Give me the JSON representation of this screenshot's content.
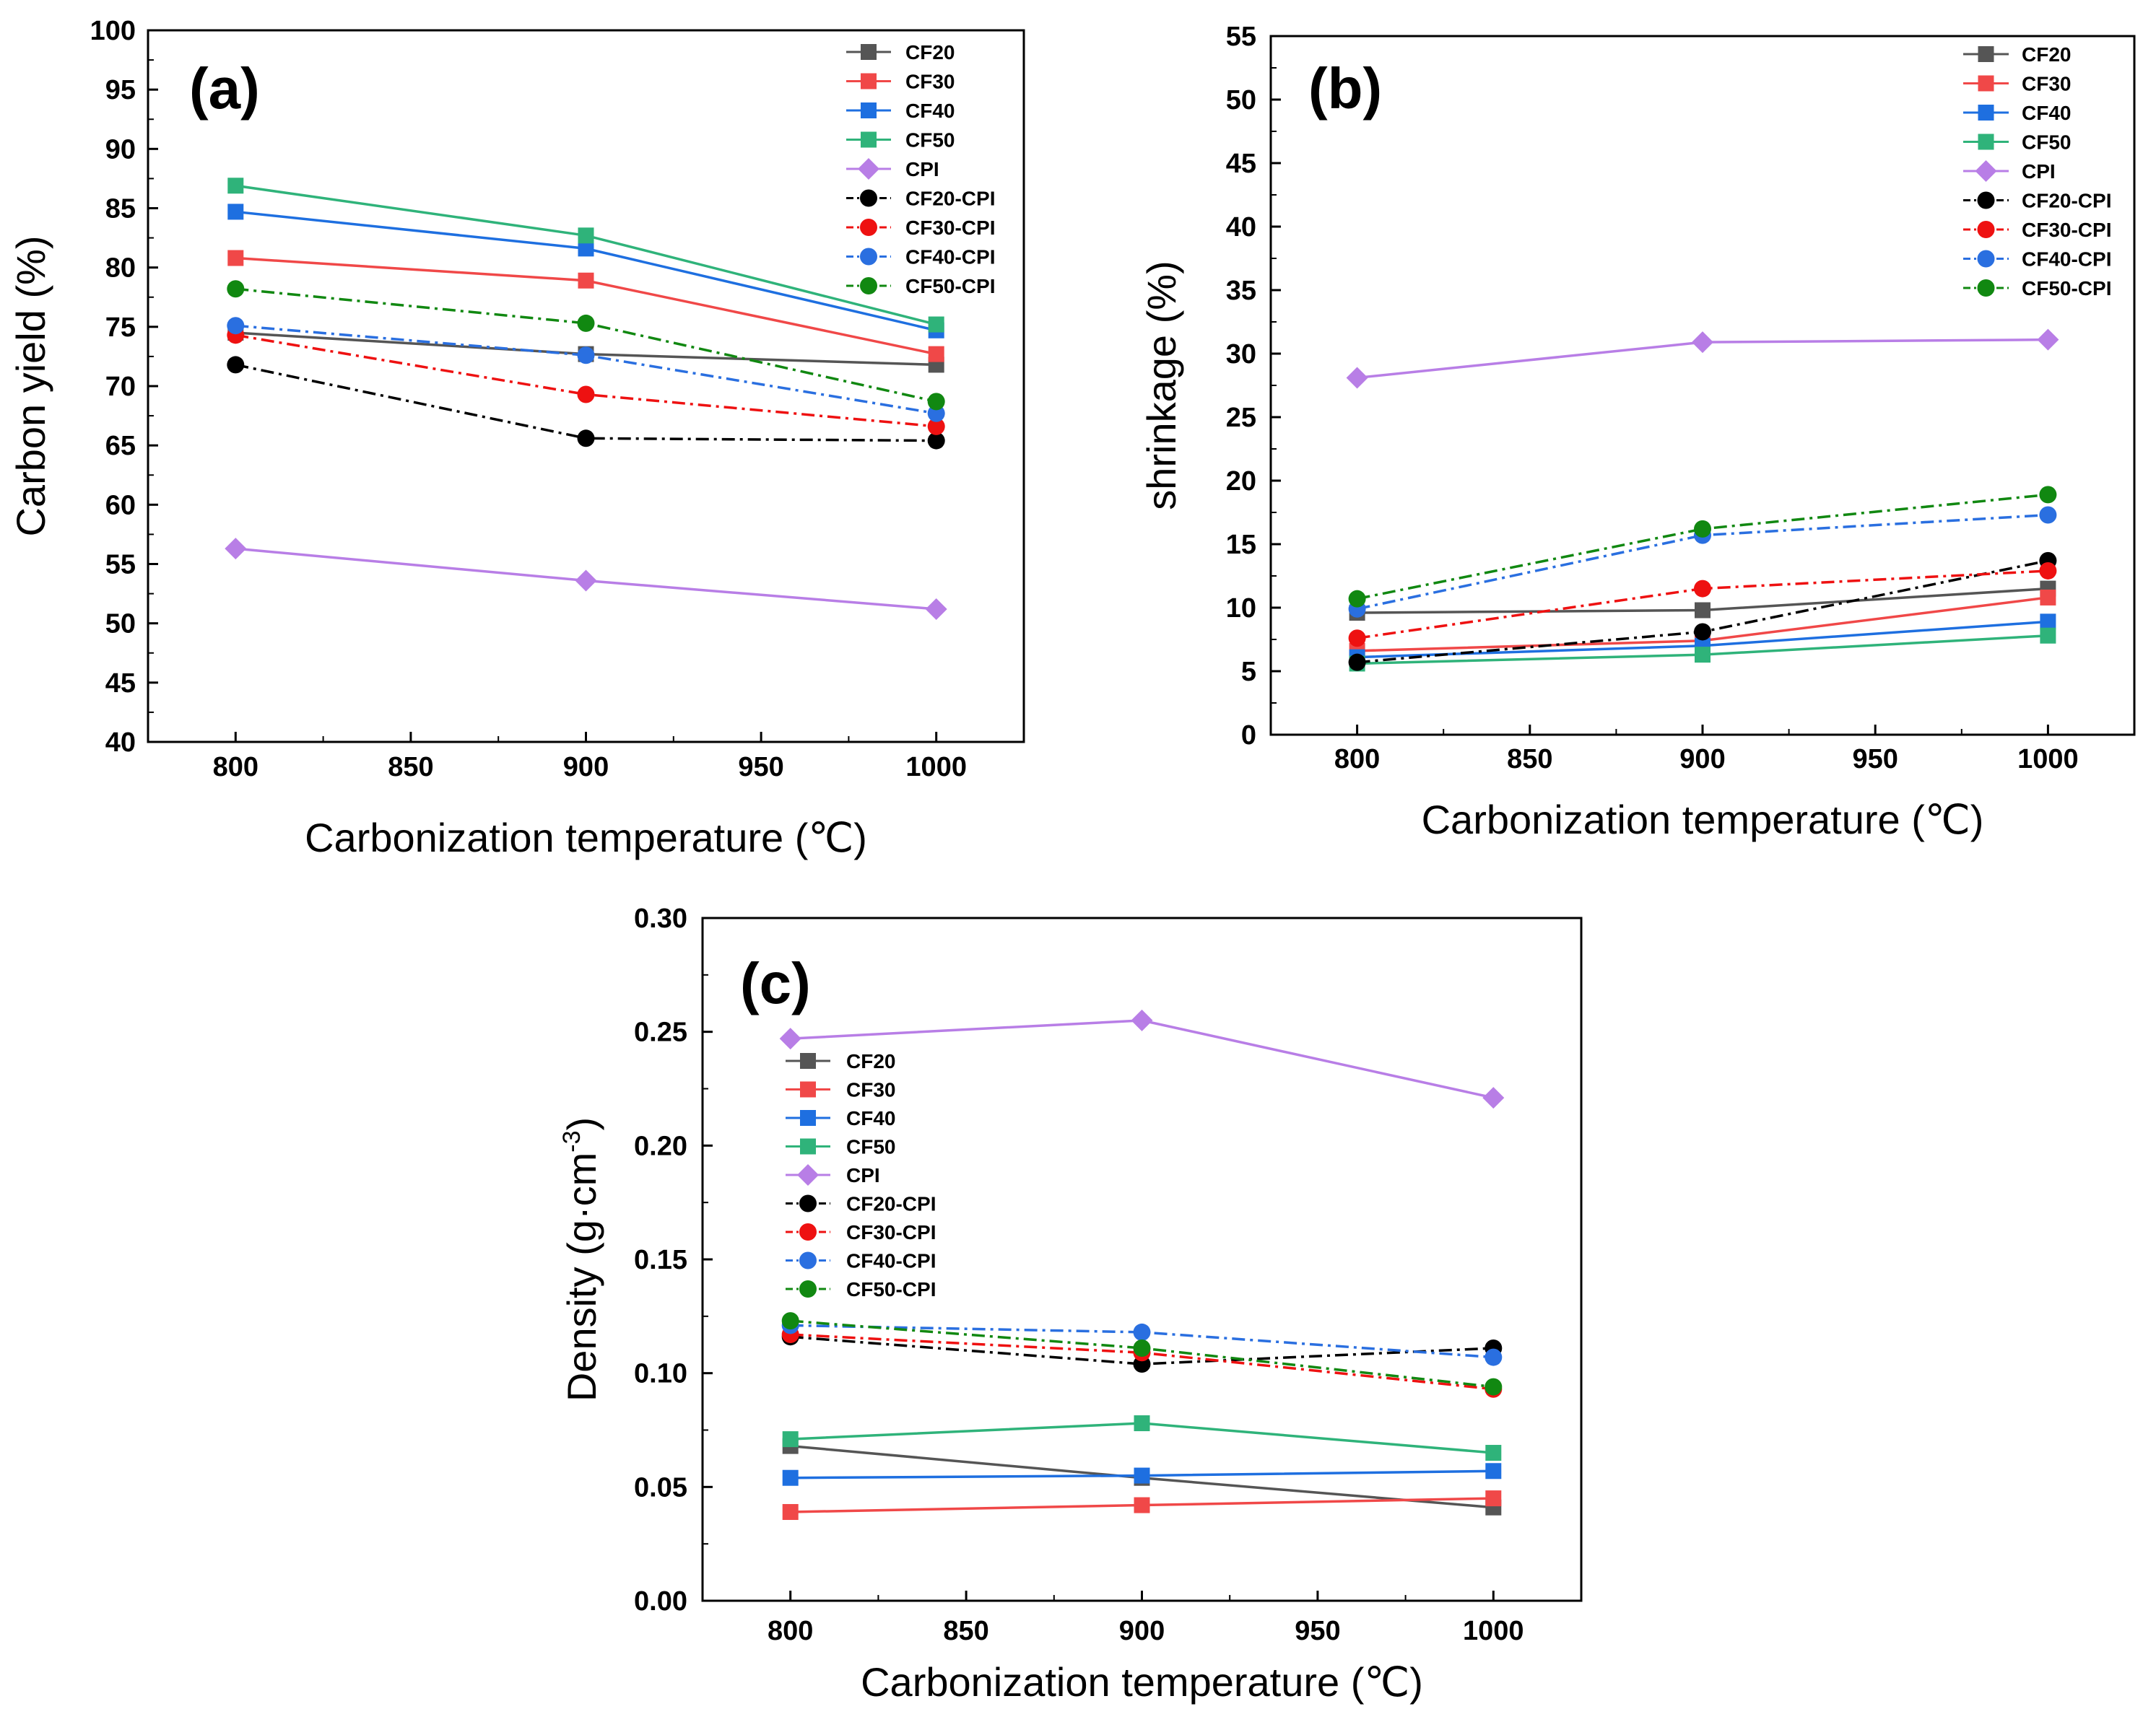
{
  "colors": {
    "CF20": "#555555",
    "CF30": "#f04848",
    "CF40": "#1e6fe0",
    "CF50": "#2fb37a",
    "CPI": "#b87ee6",
    "CF20-CPI": "#000000",
    "CF30-CPI": "#ee1111",
    "CF40-CPI": "#2a6fe0",
    "CF50-CPI": "#118811"
  },
  "chart_data": [
    {
      "id": "a",
      "type": "line",
      "panel_tag": "(a)",
      "xlabel": "Carbonization temperature (℃)",
      "ylabel": "Carbon yield (%)",
      "xlim": [
        775,
        1025
      ],
      "ylim": [
        40,
        100
      ],
      "xticks": [
        800,
        850,
        900,
        950,
        1000
      ],
      "yticks": [
        40,
        45,
        50,
        55,
        60,
        65,
        70,
        75,
        80,
        85,
        90,
        95,
        100
      ],
      "legend_position": "top-right",
      "x": [
        800,
        900,
        1000
      ],
      "series": [
        {
          "name": "CF20",
          "values": [
            74.5,
            72.7,
            71.8
          ]
        },
        {
          "name": "CF30",
          "values": [
            80.8,
            78.9,
            72.7
          ]
        },
        {
          "name": "CF40",
          "values": [
            84.7,
            81.6,
            74.7
          ]
        },
        {
          "name": "CF50",
          "values": [
            86.9,
            82.7,
            75.2
          ]
        },
        {
          "name": "CPI",
          "values": [
            56.3,
            53.6,
            51.2
          ]
        },
        {
          "name": "CF20-CPI",
          "values": [
            71.8,
            65.6,
            65.4
          ]
        },
        {
          "name": "CF30-CPI",
          "values": [
            74.3,
            69.3,
            66.6
          ]
        },
        {
          "name": "CF40-CPI",
          "values": [
            75.1,
            72.6,
            67.7
          ]
        },
        {
          "name": "CF50-CPI",
          "values": [
            78.2,
            75.3,
            68.7
          ]
        }
      ]
    },
    {
      "id": "b",
      "type": "line",
      "panel_tag": "(b)",
      "xlabel": "Carbonization temperature (℃)",
      "ylabel": "shrinkage (%)",
      "xlim": [
        775,
        1025
      ],
      "ylim": [
        0,
        55
      ],
      "xticks": [
        800,
        850,
        900,
        950,
        1000
      ],
      "yticks": [
        0,
        5,
        10,
        15,
        20,
        25,
        30,
        35,
        40,
        45,
        50,
        55
      ],
      "legend_position": "top-right",
      "x": [
        800,
        900,
        1000
      ],
      "series": [
        {
          "name": "CF20",
          "values": [
            9.6,
            9.8,
            11.5
          ]
        },
        {
          "name": "CF30",
          "values": [
            6.6,
            7.4,
            10.8
          ]
        },
        {
          "name": "CF40",
          "values": [
            6.1,
            7.0,
            8.9
          ]
        },
        {
          "name": "CF50",
          "values": [
            5.6,
            6.3,
            7.8
          ]
        },
        {
          "name": "CPI",
          "values": [
            28.1,
            30.9,
            31.1
          ]
        },
        {
          "name": "CF20-CPI",
          "values": [
            5.7,
            8.1,
            13.7
          ]
        },
        {
          "name": "CF30-CPI",
          "values": [
            7.6,
            11.5,
            12.9
          ]
        },
        {
          "name": "CF40-CPI",
          "values": [
            9.9,
            15.7,
            17.3
          ]
        },
        {
          "name": "CF50-CPI",
          "values": [
            10.7,
            16.2,
            18.9
          ]
        }
      ]
    },
    {
      "id": "c",
      "type": "line",
      "panel_tag": "(c)",
      "xlabel": "Carbonization temperature (℃)",
      "ylabel": "Density (g·cm",
      "ylabel_sup": "-3",
      "ylabel_end": ")",
      "xlim": [
        775,
        1025
      ],
      "ylim": [
        0,
        0.3
      ],
      "xticks": [
        800,
        850,
        900,
        950,
        1000
      ],
      "yticks": [
        0.0,
        0.05,
        0.1,
        0.15,
        0.2,
        0.25,
        0.3
      ],
      "ytick_decimals": 2,
      "legend_position": "middle-left",
      "x": [
        800,
        900,
        1000
      ],
      "series": [
        {
          "name": "CF20",
          "values": [
            0.068,
            0.054,
            0.041
          ]
        },
        {
          "name": "CF30",
          "values": [
            0.039,
            0.042,
            0.045
          ]
        },
        {
          "name": "CF40",
          "values": [
            0.054,
            0.055,
            0.057
          ]
        },
        {
          "name": "CF50",
          "values": [
            0.071,
            0.078,
            0.065
          ]
        },
        {
          "name": "CPI",
          "values": [
            0.247,
            0.255,
            0.221
          ]
        },
        {
          "name": "CF20-CPI",
          "values": [
            0.116,
            0.104,
            0.111
          ]
        },
        {
          "name": "CF30-CPI",
          "values": [
            0.117,
            0.109,
            0.093
          ]
        },
        {
          "name": "CF40-CPI",
          "values": [
            0.121,
            0.118,
            0.107
          ]
        },
        {
          "name": "CF50-CPI",
          "values": [
            0.123,
            0.111,
            0.094
          ]
        }
      ]
    }
  ]
}
